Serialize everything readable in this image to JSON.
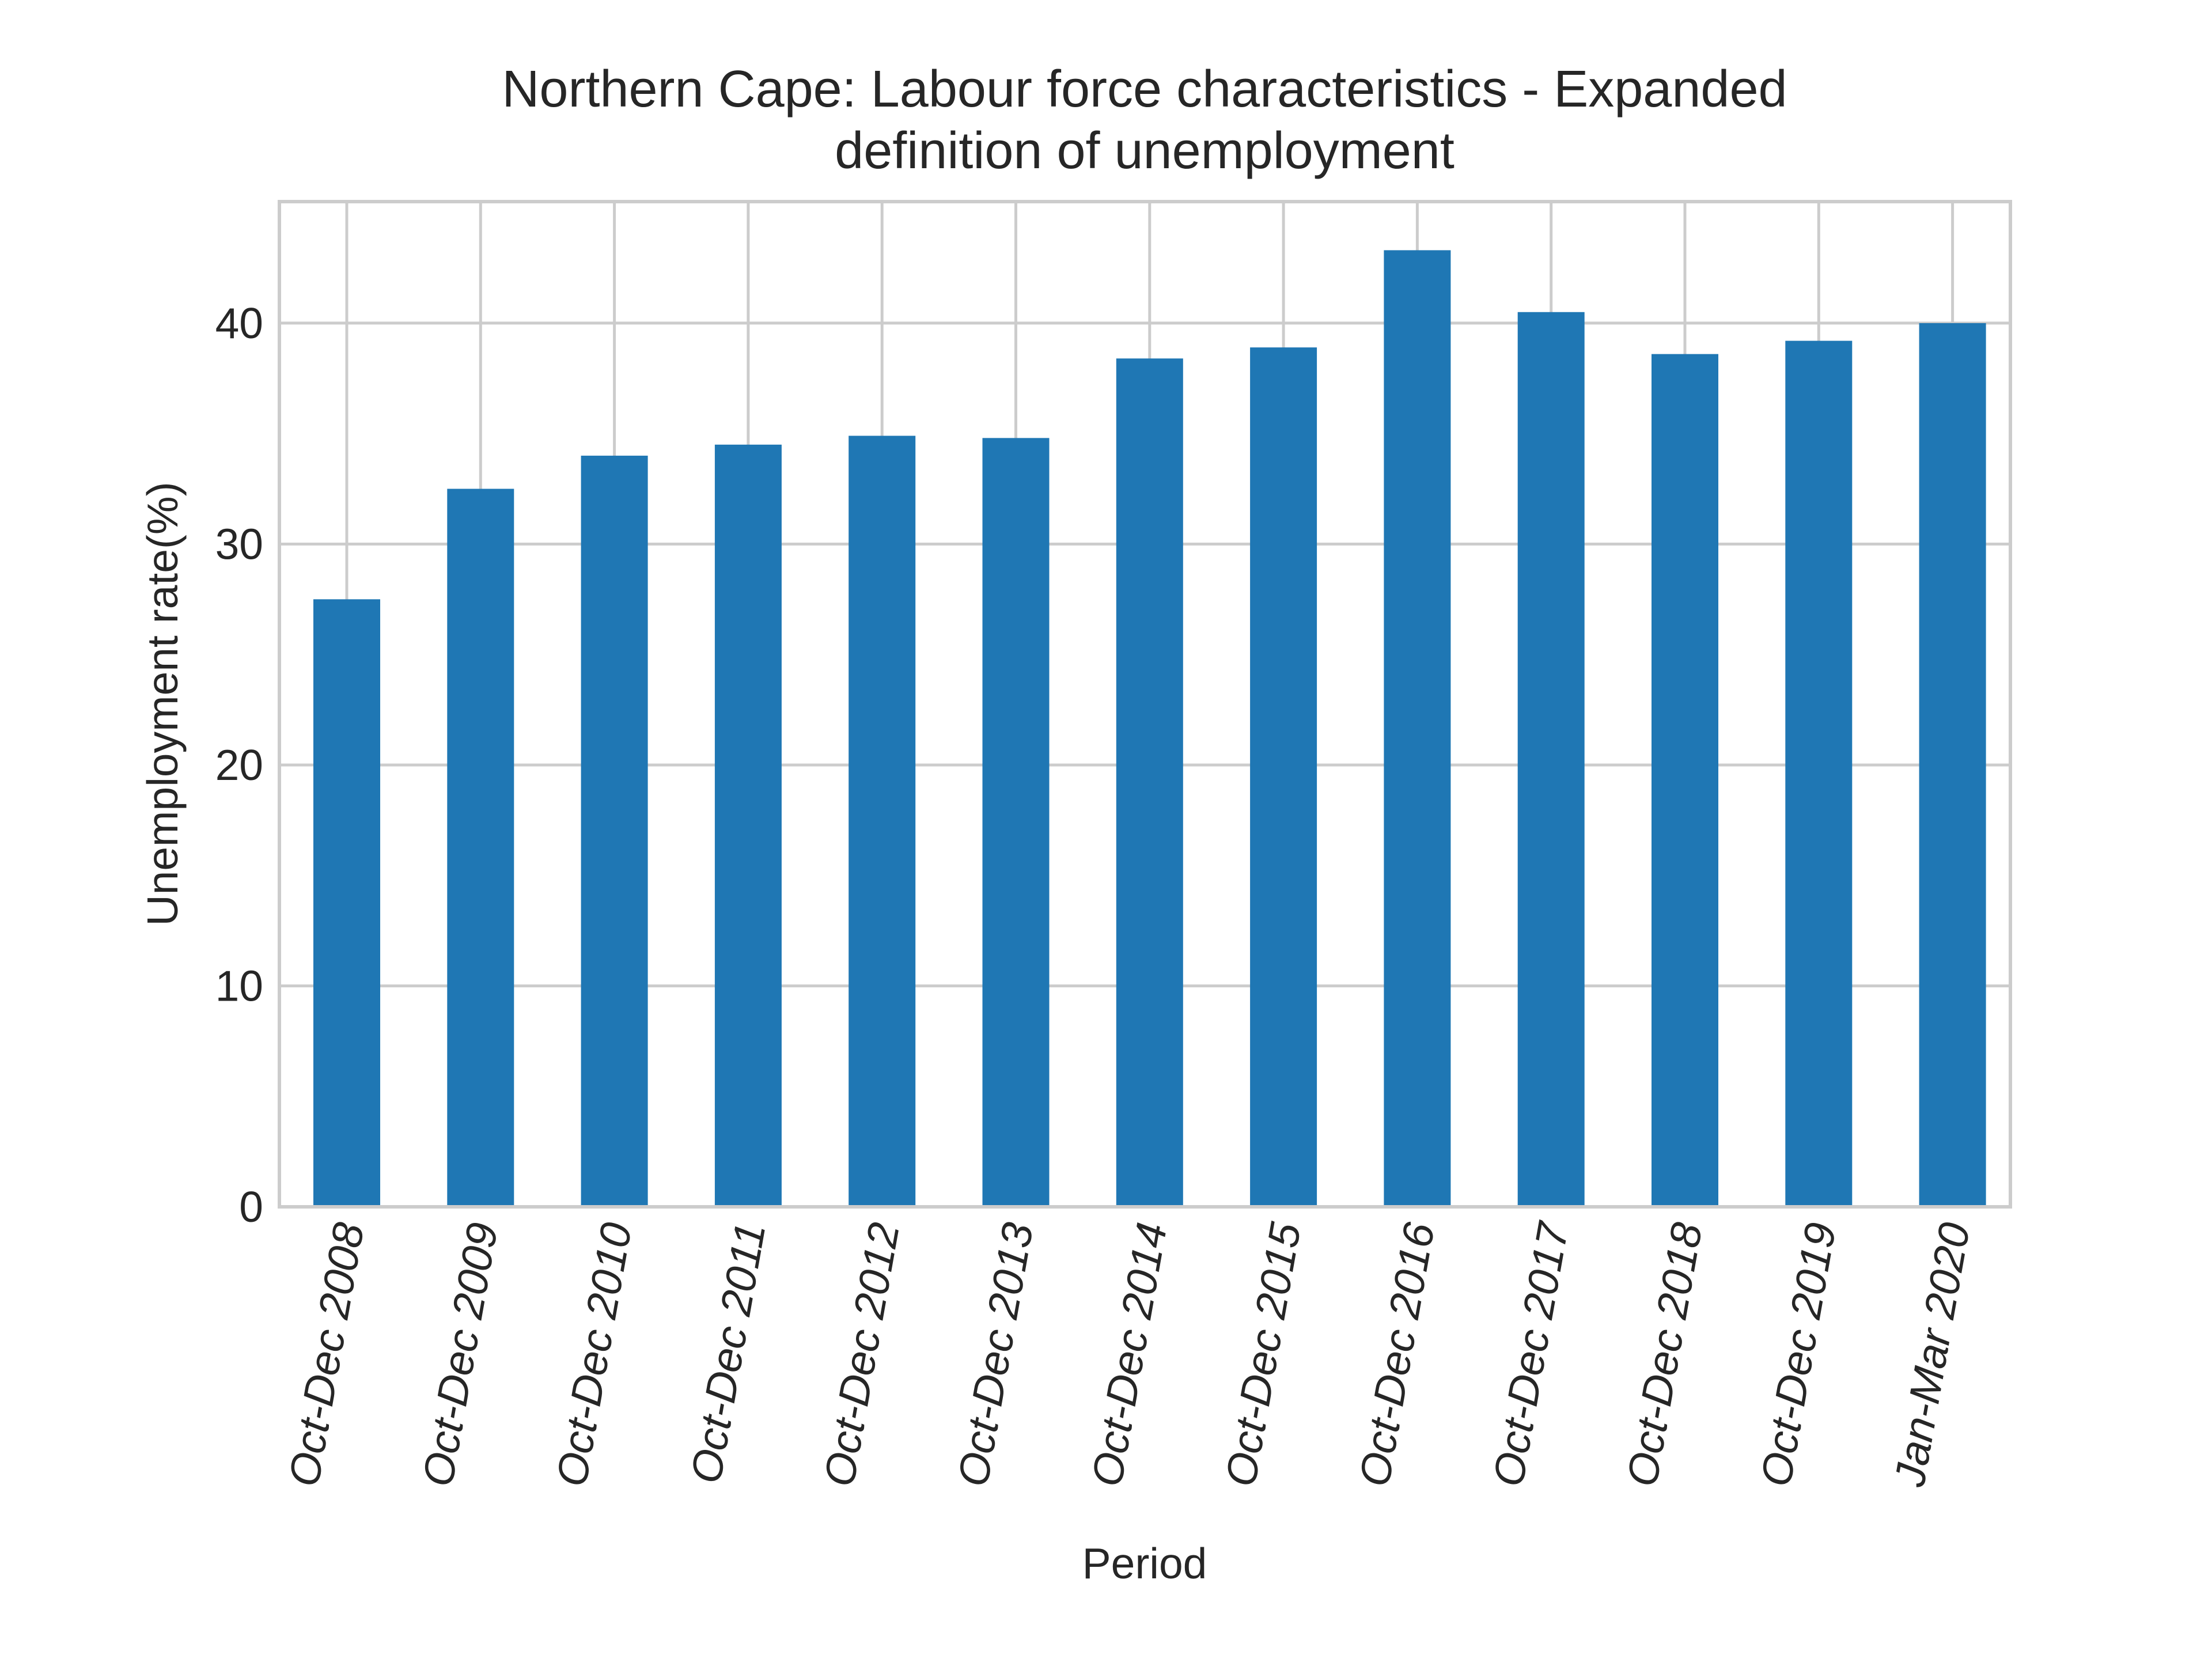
{
  "chart_data": {
    "type": "bar",
    "title_lines": [
      "Northern Cape: Labour force characteristics - Expanded",
      "definition of unemployment"
    ],
    "xlabel": "Period",
    "ylabel": "Unemployment rate(%)",
    "categories": [
      "Oct-Dec 2008",
      "Oct-Dec 2009",
      "Oct-Dec 2010",
      "Oct-Dec 2011",
      "Oct-Dec 2012",
      "Oct-Dec 2013",
      "Oct-Dec 2014",
      "Oct-Dec 2015",
      "Oct-Dec 2016",
      "Oct-Dec 2017",
      "Oct-Dec 2018",
      "Oct-Dec 2019",
      "Jan-Mar 2020"
    ],
    "values": [
      27.5,
      32.5,
      34.0,
      34.5,
      34.9,
      34.8,
      38.4,
      38.9,
      43.3,
      40.5,
      38.6,
      39.2,
      40.0
    ],
    "yticks": [
      0,
      10,
      20,
      30,
      40
    ],
    "ylim": [
      0,
      45.5
    ],
    "grid": true,
    "legend": "none",
    "bar_color": "#1f77b4"
  }
}
